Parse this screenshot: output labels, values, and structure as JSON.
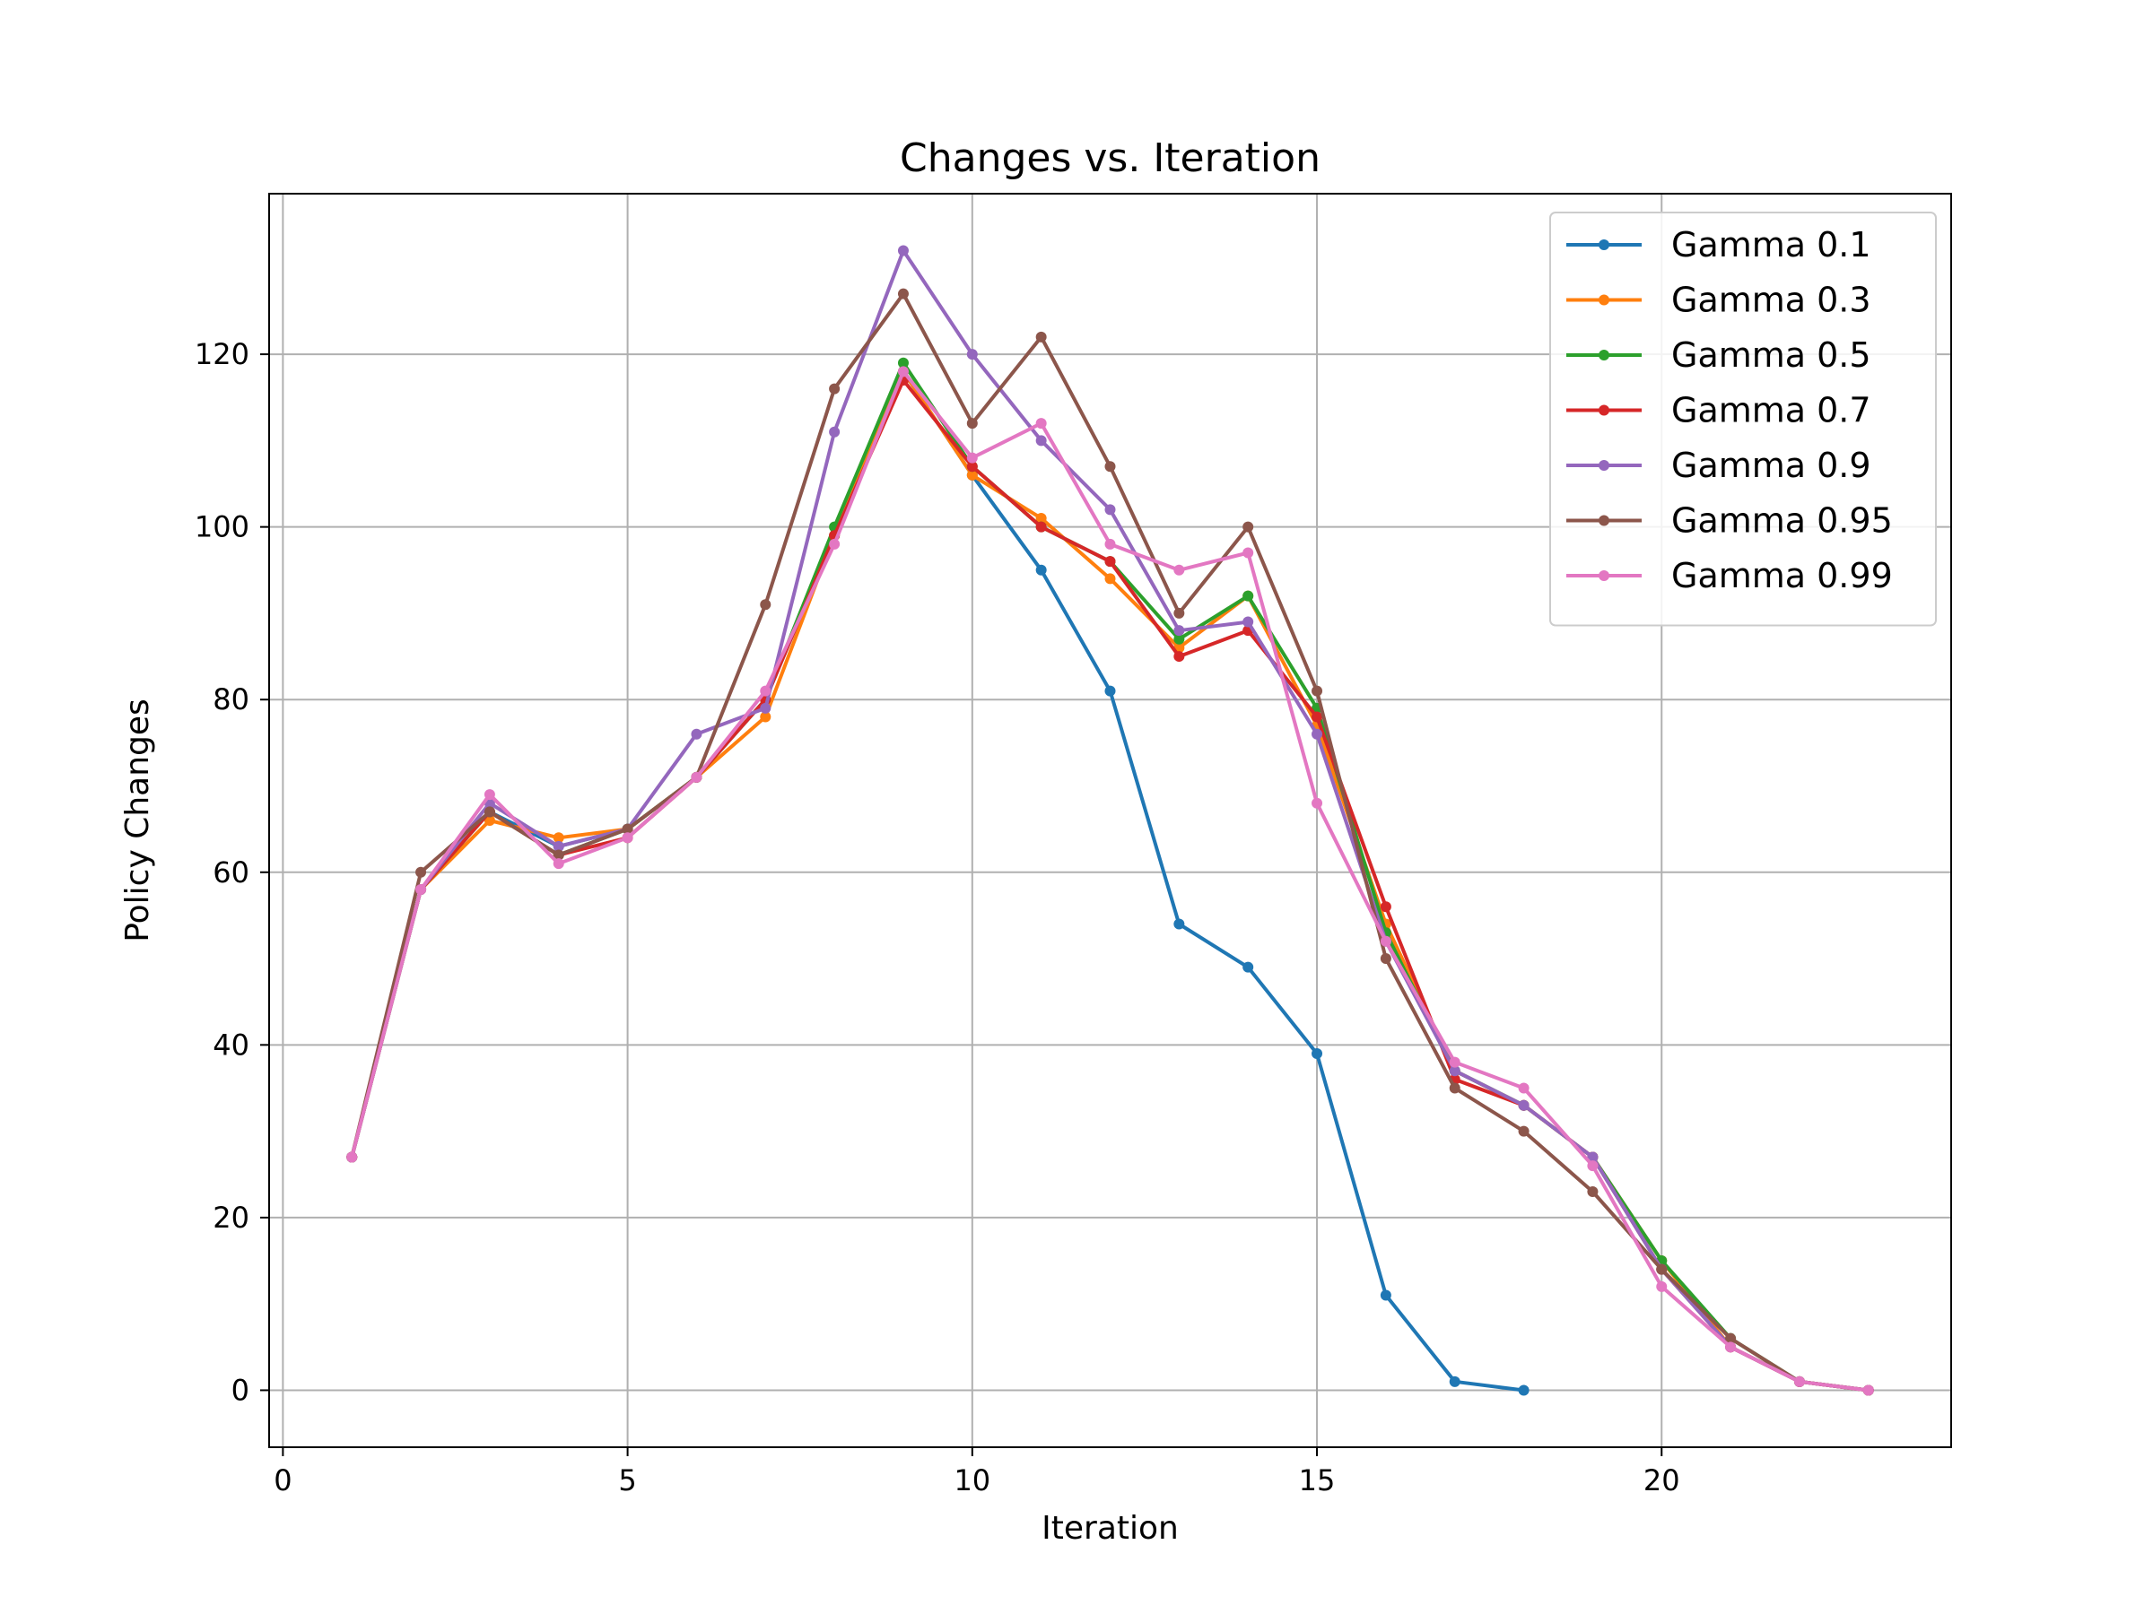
{
  "chart_data": {
    "type": "line",
    "title": "Changes vs. Iteration",
    "xlabel": "Iteration",
    "ylabel": "Policy Changes",
    "xlim": [
      -0.2,
      24.2
    ],
    "ylim": [
      -6.6,
      138.6
    ],
    "xticks": [
      0,
      5,
      10,
      15,
      20
    ],
    "yticks": [
      0,
      20,
      40,
      60,
      80,
      100,
      120
    ],
    "grid": true,
    "legend_position": "top-right",
    "series": [
      {
        "name": "Gamma 0.1",
        "color": "#1f77b4",
        "x": [
          1,
          2,
          3,
          4,
          5,
          6,
          7,
          8,
          9,
          10,
          11,
          12,
          13,
          14,
          15,
          16,
          17,
          18
        ],
        "y": [
          27,
          58,
          67,
          63,
          65,
          71,
          80,
          99,
          118,
          106,
          95,
          81,
          54,
          49,
          39,
          11,
          1,
          0
        ]
      },
      {
        "name": "Gamma 0.3",
        "color": "#ff7f0e",
        "x": [
          1,
          2,
          3,
          4,
          5,
          6,
          7,
          8,
          9,
          10,
          11,
          12,
          13,
          14,
          15,
          16,
          17,
          18,
          19,
          20,
          21,
          22,
          23
        ],
        "y": [
          27,
          58,
          66,
          64,
          65,
          71,
          78,
          99,
          118,
          106,
          101,
          94,
          86,
          92,
          77,
          54,
          37,
          33,
          27,
          15,
          5,
          1,
          0
        ]
      },
      {
        "name": "Gamma 0.5",
        "color": "#2ca02c",
        "x": [
          1,
          2,
          3,
          4,
          5,
          6,
          7,
          8,
          9,
          10,
          11,
          12,
          13,
          14,
          15,
          16,
          17,
          18,
          19,
          20,
          21,
          22,
          23
        ],
        "y": [
          27,
          58,
          67,
          62,
          65,
          71,
          80,
          100,
          119,
          107,
          100,
          96,
          87,
          92,
          79,
          53,
          37,
          33,
          27,
          15,
          6,
          1,
          0
        ]
      },
      {
        "name": "Gamma 0.7",
        "color": "#d62728",
        "x": [
          1,
          2,
          3,
          4,
          5,
          6,
          7,
          8,
          9,
          10,
          11,
          12,
          13,
          14,
          15,
          16,
          17,
          18,
          19,
          20,
          21,
          22,
          23
        ],
        "y": [
          27,
          58,
          67,
          62,
          64,
          71,
          80,
          99,
          117,
          107,
          100,
          96,
          85,
          88,
          78,
          56,
          36,
          33,
          27,
          14,
          5,
          1,
          0
        ]
      },
      {
        "name": "Gamma 0.9",
        "color": "#9467bd",
        "x": [
          1,
          2,
          3,
          4,
          5,
          6,
          7,
          8,
          9,
          10,
          11,
          12,
          13,
          14,
          15,
          16,
          17,
          18,
          19,
          20,
          21,
          22,
          23
        ],
        "y": [
          27,
          58,
          68,
          63,
          65,
          76,
          79,
          111,
          132,
          120,
          110,
          102,
          88,
          89,
          76,
          52,
          37,
          33,
          27,
          14,
          5,
          1,
          0
        ]
      },
      {
        "name": "Gamma 0.95",
        "color": "#8c564b",
        "x": [
          1,
          2,
          3,
          4,
          5,
          6,
          7,
          8,
          9,
          10,
          11,
          12,
          13,
          14,
          15,
          16,
          17,
          18,
          19,
          20,
          21,
          22,
          23
        ],
        "y": [
          27,
          60,
          67,
          62,
          65,
          71,
          91,
          116,
          127,
          112,
          122,
          107,
          90,
          100,
          81,
          50,
          35,
          30,
          23,
          14,
          6,
          1,
          0
        ]
      },
      {
        "name": "Gamma 0.99",
        "color": "#e377c2",
        "x": [
          1,
          2,
          3,
          4,
          5,
          6,
          7,
          8,
          9,
          10,
          11,
          12,
          13,
          14,
          15,
          16,
          17,
          18,
          19,
          20,
          21,
          22,
          23
        ],
        "y": [
          27,
          58,
          69,
          61,
          64,
          71,
          81,
          98,
          118,
          108,
          112,
          98,
          95,
          97,
          68,
          52,
          38,
          35,
          26,
          12,
          5,
          1,
          0
        ]
      }
    ]
  }
}
